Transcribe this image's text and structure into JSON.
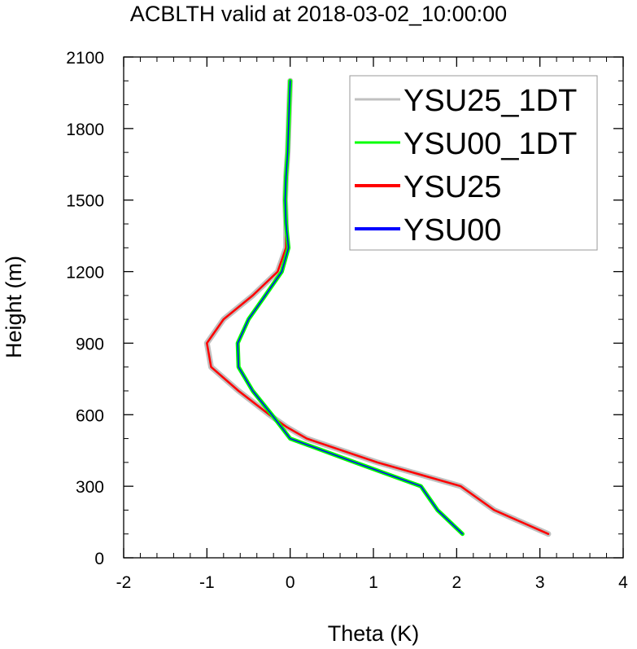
{
  "chart_data": {
    "type": "line",
    "title": "ACBLTH valid at 2018-03-02_10:00:00",
    "xlabel": "Theta (K)",
    "ylabel": "Height (m)",
    "xlim": [
      -2,
      4
    ],
    "ylim": [
      0,
      2100
    ],
    "xticks": [
      -2,
      -1,
      0,
      1,
      2,
      3,
      4
    ],
    "yticks": [
      0,
      300,
      600,
      900,
      1200,
      1500,
      1800,
      2100
    ],
    "legend_position": "top-right",
    "series": [
      {
        "name": "YSU25_1DT",
        "color": "#c0c0c0",
        "points": [
          [
            3.1,
            100
          ],
          [
            2.45,
            200
          ],
          [
            2.05,
            300
          ],
          [
            1.55,
            350
          ],
          [
            1.05,
            400
          ],
          [
            0.2,
            500
          ],
          [
            -0.05,
            550
          ],
          [
            -0.25,
            600
          ],
          [
            -0.62,
            700
          ],
          [
            -0.95,
            800
          ],
          [
            -1.0,
            900
          ],
          [
            -0.8,
            1000
          ],
          [
            -0.45,
            1100
          ],
          [
            -0.15,
            1200
          ],
          [
            -0.05,
            1300
          ],
          [
            -0.05,
            1400
          ],
          [
            -0.06,
            1500
          ],
          [
            -0.05,
            1600
          ],
          [
            -0.03,
            1700
          ],
          [
            -0.02,
            1800
          ],
          [
            -0.01,
            1900
          ],
          [
            0.0,
            2000
          ]
        ]
      },
      {
        "name": "YSU00_1DT",
        "color": "#00ff00",
        "points": [
          [
            2.07,
            100
          ],
          [
            1.77,
            200
          ],
          [
            1.57,
            300
          ],
          [
            0.78,
            400
          ],
          [
            0.0,
            500
          ],
          [
            -0.22,
            600
          ],
          [
            -0.45,
            700
          ],
          [
            -0.62,
            800
          ],
          [
            -0.63,
            900
          ],
          [
            -0.5,
            1000
          ],
          [
            -0.3,
            1100
          ],
          [
            -0.1,
            1200
          ],
          [
            -0.02,
            1300
          ],
          [
            -0.05,
            1400
          ],
          [
            -0.06,
            1500
          ],
          [
            -0.05,
            1600
          ],
          [
            -0.03,
            1700
          ],
          [
            -0.02,
            1800
          ],
          [
            -0.01,
            1900
          ],
          [
            0.0,
            2000
          ]
        ]
      },
      {
        "name": "YSU25",
        "color": "#ff0000",
        "points": [
          [
            3.1,
            100
          ],
          [
            2.45,
            200
          ],
          [
            2.05,
            300
          ],
          [
            1.55,
            350
          ],
          [
            1.05,
            400
          ],
          [
            0.2,
            500
          ],
          [
            -0.05,
            550
          ],
          [
            -0.25,
            600
          ],
          [
            -0.62,
            700
          ],
          [
            -0.95,
            800
          ],
          [
            -1.0,
            900
          ],
          [
            -0.8,
            1000
          ],
          [
            -0.45,
            1100
          ],
          [
            -0.15,
            1200
          ],
          [
            -0.05,
            1300
          ],
          [
            -0.05,
            1400
          ],
          [
            -0.06,
            1500
          ],
          [
            -0.05,
            1600
          ],
          [
            -0.03,
            1700
          ],
          [
            -0.02,
            1800
          ],
          [
            -0.01,
            1900
          ],
          [
            0.0,
            2000
          ]
        ]
      },
      {
        "name": "YSU00",
        "color": "#0000ff",
        "points": [
          [
            2.07,
            100
          ],
          [
            1.77,
            200
          ],
          [
            1.57,
            300
          ],
          [
            0.78,
            400
          ],
          [
            0.0,
            500
          ],
          [
            -0.22,
            600
          ],
          [
            -0.45,
            700
          ],
          [
            -0.62,
            800
          ],
          [
            -0.63,
            900
          ],
          [
            -0.5,
            1000
          ],
          [
            -0.3,
            1100
          ],
          [
            -0.1,
            1200
          ],
          [
            -0.02,
            1300
          ],
          [
            -0.05,
            1400
          ],
          [
            -0.06,
            1500
          ],
          [
            -0.05,
            1600
          ],
          [
            -0.03,
            1700
          ],
          [
            -0.02,
            1800
          ],
          [
            -0.01,
            1900
          ],
          [
            0.0,
            2000
          ]
        ]
      }
    ]
  }
}
